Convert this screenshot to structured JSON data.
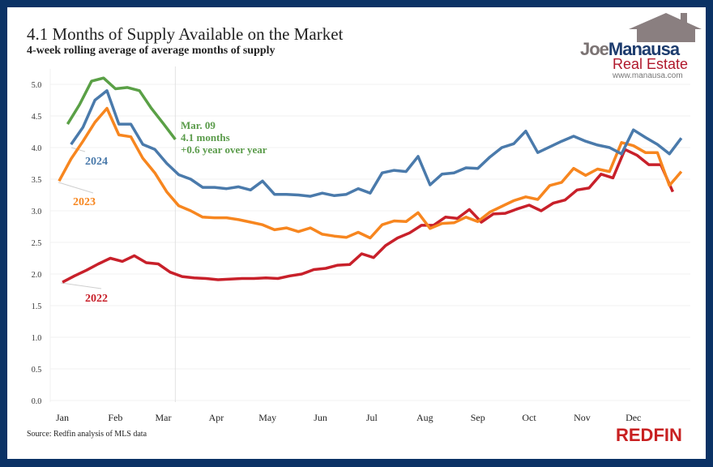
{
  "header": {
    "title": "4.1 Months of Supply Available on the Market",
    "subtitle": "4-week rolling average of average months of supply"
  },
  "logo": {
    "joe": "Joe",
    "manausa": "Manausa",
    "real_estate": "Real Estate",
    "url": "www.manausa.com"
  },
  "footer": {
    "source": "Source: Redfin analysis of MLS data",
    "brand": "REDFIN"
  },
  "chart_data": {
    "type": "line",
    "title": "4.1 Months of Supply Available on the Market",
    "subtitle": "4-week rolling average of average months of supply",
    "xlabel": "",
    "ylabel": "",
    "ylim": [
      0,
      5.0
    ],
    "yticks": [
      "0.0",
      "0.5",
      "1.0",
      "1.5",
      "2.0",
      "2.5",
      "3.0",
      "3.5",
      "4.0",
      "4.5",
      "5.0"
    ],
    "xticks": [
      "Jan",
      "Feb",
      "Mar",
      "Apr",
      "May",
      "Jun",
      "Jul",
      "Aug",
      "Sep",
      "Oct",
      "Nov",
      "Dec"
    ],
    "grid": true,
    "legend": "none",
    "interval_days": 7,
    "annotation": {
      "lines": [
        "Mar. 09",
        "4.1 months",
        "+0.6 year over year"
      ],
      "date": "03-09"
    },
    "series": [
      {
        "name": "2022",
        "color": "#c8202a",
        "start_date": "01-02",
        "values": [
          1.87,
          1.97,
          2.06,
          2.16,
          2.25,
          2.2,
          2.29,
          2.18,
          2.16,
          2.03,
          1.96,
          1.94,
          1.93,
          1.91,
          1.92,
          1.93,
          1.93,
          1.94,
          1.93,
          1.97,
          2.0,
          2.07,
          2.09,
          2.14,
          2.15,
          2.32,
          2.26,
          2.45,
          2.57,
          2.65,
          2.77,
          2.77,
          2.9,
          2.88,
          3.02,
          2.82,
          2.95,
          2.96,
          3.03,
          3.09,
          3.0,
          3.12,
          3.17,
          3.33,
          3.36,
          3.58,
          3.52,
          3.97,
          3.88,
          3.73,
          3.73,
          3.3
        ]
      },
      {
        "name": "2023",
        "color": "#f7861f",
        "start_date": "12-31",
        "values": [
          3.47,
          3.82,
          4.1,
          4.4,
          4.62,
          4.2,
          4.17,
          3.83,
          3.6,
          3.3,
          3.08,
          3.0,
          2.9,
          2.89,
          2.89,
          2.86,
          2.82,
          2.78,
          2.7,
          2.73,
          2.67,
          2.73,
          2.63,
          2.6,
          2.58,
          2.66,
          2.57,
          2.78,
          2.84,
          2.83,
          2.97,
          2.72,
          2.8,
          2.81,
          2.9,
          2.83,
          2.98,
          3.07,
          3.16,
          3.22,
          3.18,
          3.4,
          3.45,
          3.67,
          3.56,
          3.66,
          3.62,
          4.08,
          4.03,
          3.92,
          3.92,
          3.4,
          3.62
        ]
      },
      {
        "name": "2024",
        "color": "#4a7aab",
        "start_date": "01-07",
        "values": [
          4.05,
          4.32,
          4.75,
          4.9,
          4.37,
          4.37,
          4.05,
          3.97,
          3.75,
          3.57,
          3.5,
          3.37,
          3.37,
          3.35,
          3.38,
          3.33,
          3.47,
          3.26,
          3.26,
          3.25,
          3.23,
          3.28,
          3.24,
          3.26,
          3.35,
          3.28,
          3.6,
          3.64,
          3.62,
          3.86,
          3.41,
          3.58,
          3.6,
          3.68,
          3.67,
          3.85,
          4.0,
          4.06,
          4.26,
          3.92,
          4.01,
          4.1,
          4.18,
          4.1,
          4.04,
          4.0,
          3.9,
          4.28,
          4.16,
          4.05,
          3.9,
          4.15
        ]
      },
      {
        "color": "#5aa046",
        "start_date": "01-05",
        "values": [
          4.37,
          4.68,
          5.05,
          5.1,
          4.93,
          4.95,
          4.9,
          4.62,
          4.38,
          4.13
        ]
      }
    ]
  }
}
